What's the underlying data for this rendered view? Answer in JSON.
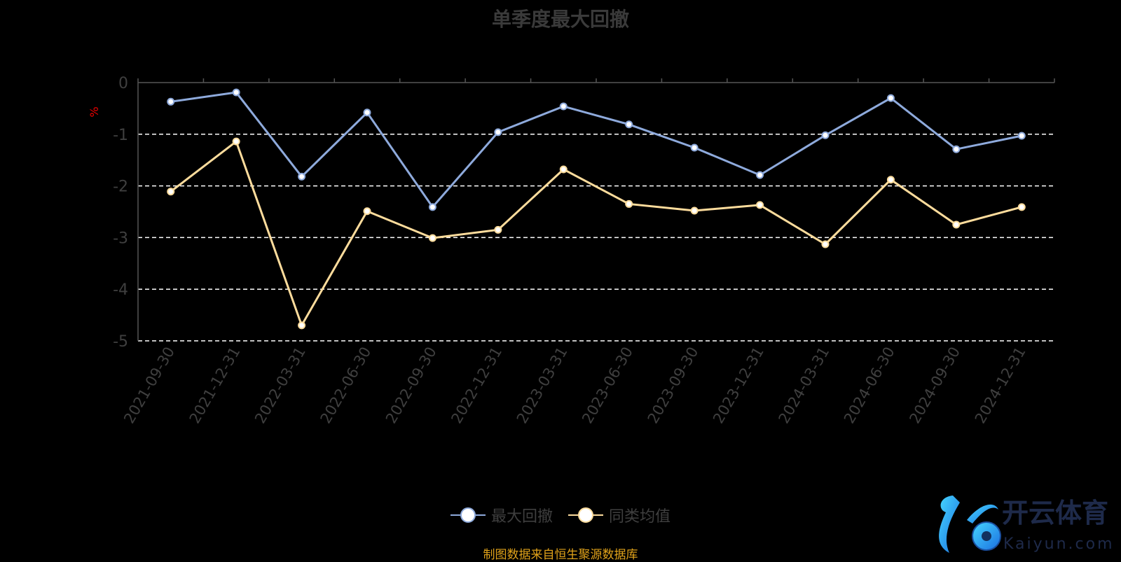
{
  "chart_data": {
    "type": "line",
    "title": "单季度最大回撤",
    "ylabel": "%",
    "ylim": [
      -5,
      0
    ],
    "yticks": [
      "0",
      "-1",
      "-2",
      "-3",
      "-4",
      "-5"
    ],
    "grid": true,
    "legend_placement": "bottom",
    "categories": [
      "2021-09-30",
      "2021-12-31",
      "2022-03-31",
      "2022-06-30",
      "2022-09-30",
      "2022-12-31",
      "2023-03-31",
      "2023-06-30",
      "2023-09-30",
      "2023-12-31",
      "2024-03-31",
      "2024-06-30",
      "2024-09-30",
      "2024-12-31"
    ],
    "series": [
      {
        "name": "最大回撤",
        "color": "#8eaadc",
        "values": [
          -0.37,
          -0.19,
          -1.82,
          -0.58,
          -2.41,
          -0.96,
          -0.46,
          -0.81,
          -1.26,
          -1.79,
          -1.02,
          -0.3,
          -1.29,
          -1.03
        ]
      },
      {
        "name": "同类均值",
        "color": "#fddc9c",
        "values": [
          -2.11,
          -1.14,
          -4.7,
          -2.49,
          -3.01,
          -2.85,
          -1.68,
          -2.35,
          -2.48,
          -2.37,
          -3.13,
          -1.88,
          -2.75,
          -2.41
        ]
      }
    ],
    "source_note": "制图数据来自恒生聚源数据库"
  },
  "watermark": {
    "text": "开云体育",
    "subtext": "Kaiyun.com"
  }
}
